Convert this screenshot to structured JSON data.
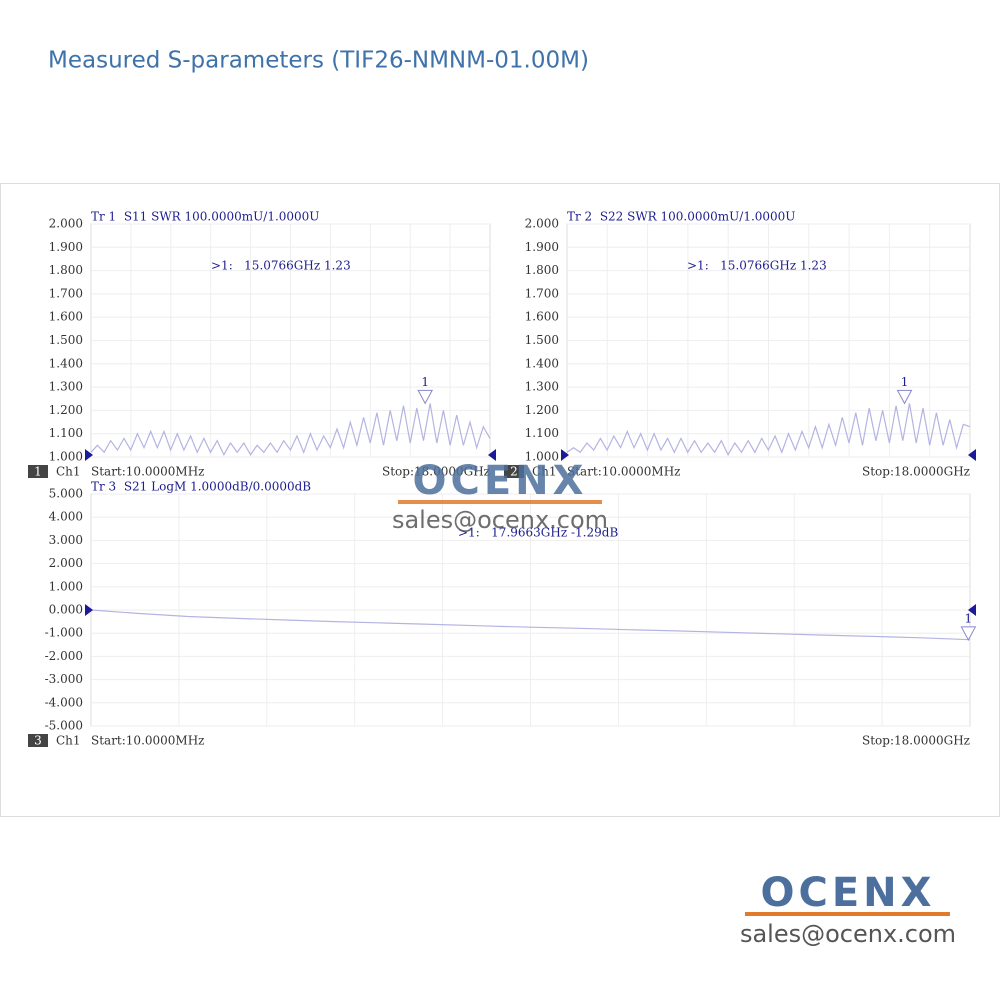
{
  "header": {
    "title": "Measured S-parameters (TIF26-NMNM-01.00M)"
  },
  "watermark": {
    "logo": "OCENX",
    "email": "sales@ocenx.com"
  },
  "footer": {
    "logo": "OCENX",
    "email": "sales@ocenx.com"
  },
  "chart_data": [
    {
      "type": "line",
      "title": "Tr 1  S11 SWR 100.0000mU/1.0000U",
      "channel": "1",
      "channel_label": "Ch1",
      "start_label": "Start:10.0000MHz",
      "stop_label": "Stop:18.0000GHz",
      "color": "#b4b4e2",
      "xlim": [
        0.01,
        18
      ],
      "ylim": [
        1,
        2
      ],
      "yticks": [
        {
          "value": 1,
          "label": "1.000"
        },
        {
          "value": 1.1,
          "label": "1.100"
        },
        {
          "value": 1.2,
          "label": "1.200"
        },
        {
          "value": 1.3,
          "label": "1.300"
        },
        {
          "value": 1.4,
          "label": "1.400"
        },
        {
          "value": 1.5,
          "label": "1.500"
        },
        {
          "value": 1.6,
          "label": "1.600"
        },
        {
          "value": 1.7,
          "label": "1.700"
        },
        {
          "value": 1.8,
          "label": "1.800"
        },
        {
          "value": 1.9,
          "label": "1.900"
        },
        {
          "value": 2,
          "label": "2.000"
        }
      ],
      "x": [
        0.01,
        0.3,
        0.6,
        0.9,
        1.2,
        1.5,
        1.8,
        2.1,
        2.4,
        2.7,
        3,
        3.3,
        3.6,
        3.9,
        4.2,
        4.5,
        4.8,
        5.1,
        5.4,
        5.7,
        6,
        6.3,
        6.6,
        6.9,
        7.2,
        7.5,
        7.8,
        8.1,
        8.4,
        8.7,
        9,
        9.3,
        9.6,
        9.9,
        10.2,
        10.5,
        10.8,
        11.1,
        11.4,
        11.7,
        12,
        12.3,
        12.6,
        12.9,
        13.2,
        13.5,
        13.8,
        14.1,
        14.4,
        14.7,
        15,
        15.3,
        15.6,
        15.9,
        16.2,
        16.5,
        16.8,
        17.1,
        17.4,
        17.7,
        18
      ],
      "values": [
        1.02,
        1.05,
        1.02,
        1.07,
        1.03,
        1.08,
        1.03,
        1.1,
        1.04,
        1.11,
        1.04,
        1.11,
        1.03,
        1.1,
        1.03,
        1.09,
        1.02,
        1.08,
        1.02,
        1.07,
        1.01,
        1.06,
        1.02,
        1.06,
        1.01,
        1.05,
        1.02,
        1.06,
        1.02,
        1.07,
        1.03,
        1.09,
        1.02,
        1.1,
        1.03,
        1.09,
        1.04,
        1.12,
        1.04,
        1.15,
        1.05,
        1.17,
        1.06,
        1.19,
        1.05,
        1.2,
        1.07,
        1.22,
        1.06,
        1.21,
        1.07,
        1.23,
        1.06,
        1.2,
        1.05,
        1.18,
        1.05,
        1.15,
        1.04,
        1.13,
        1.08
      ],
      "marker": {
        "label": "1",
        "x": 15.0766,
        "value": 1.23,
        "text": ">1:   15.0766GHz 1.23"
      }
    },
    {
      "type": "line",
      "title": "Tr 2  S22 SWR 100.0000mU/1.0000U",
      "channel": "2",
      "channel_label": "Ch1",
      "start_label": "Start:10.0000MHz",
      "stop_label": "Stop:18.0000GHz",
      "color": "#b4b4e2",
      "xlim": [
        0.01,
        18
      ],
      "ylim": [
        1,
        2
      ],
      "yticks": [
        {
          "value": 1,
          "label": "1.000"
        },
        {
          "value": 1.1,
          "label": "1.100"
        },
        {
          "value": 1.2,
          "label": "1.200"
        },
        {
          "value": 1.3,
          "label": "1.300"
        },
        {
          "value": 1.4,
          "label": "1.400"
        },
        {
          "value": 1.5,
          "label": "1.500"
        },
        {
          "value": 1.6,
          "label": "1.600"
        },
        {
          "value": 1.7,
          "label": "1.700"
        },
        {
          "value": 1.8,
          "label": "1.800"
        },
        {
          "value": 1.9,
          "label": "1.900"
        },
        {
          "value": 2,
          "label": "2.000"
        }
      ],
      "x": [
        0.01,
        0.3,
        0.6,
        0.9,
        1.2,
        1.5,
        1.8,
        2.1,
        2.4,
        2.7,
        3,
        3.3,
        3.6,
        3.9,
        4.2,
        4.5,
        4.8,
        5.1,
        5.4,
        5.7,
        6,
        6.3,
        6.6,
        6.9,
        7.2,
        7.5,
        7.8,
        8.1,
        8.4,
        8.7,
        9,
        9.3,
        9.6,
        9.9,
        10.2,
        10.5,
        10.8,
        11.1,
        11.4,
        11.7,
        12,
        12.3,
        12.6,
        12.9,
        13.2,
        13.5,
        13.8,
        14.1,
        14.4,
        14.7,
        15,
        15.3,
        15.6,
        15.9,
        16.2,
        16.5,
        16.8,
        17.1,
        17.4,
        17.7,
        18
      ],
      "values": [
        1.02,
        1.04,
        1.02,
        1.06,
        1.03,
        1.08,
        1.03,
        1.09,
        1.04,
        1.11,
        1.04,
        1.1,
        1.03,
        1.1,
        1.03,
        1.08,
        1.02,
        1.08,
        1.02,
        1.07,
        1.02,
        1.06,
        1.02,
        1.07,
        1.01,
        1.06,
        1.02,
        1.07,
        1.02,
        1.08,
        1.03,
        1.09,
        1.02,
        1.1,
        1.03,
        1.11,
        1.04,
        1.13,
        1.04,
        1.14,
        1.05,
        1.17,
        1.06,
        1.19,
        1.05,
        1.21,
        1.07,
        1.2,
        1.06,
        1.22,
        1.07,
        1.23,
        1.06,
        1.21,
        1.05,
        1.19,
        1.05,
        1.16,
        1.04,
        1.14,
        1.13
      ],
      "marker": {
        "label": "1",
        "x": 15.0766,
        "value": 1.23,
        "text": ">1:   15.0766GHz 1.23"
      }
    },
    {
      "type": "line",
      "title": "Tr 3  S21 LogM 1.0000dB/0.0000dB",
      "channel": "3",
      "channel_label": "Ch1",
      "start_label": "Start:10.0000MHz",
      "stop_label": "Stop:18.0000GHz",
      "color": "#b4b4e2",
      "xlim": [
        0.01,
        18
      ],
      "ylim": [
        -5,
        5
      ],
      "yticks": [
        {
          "value": -5,
          "label": "-5.000"
        },
        {
          "value": -4,
          "label": "-4.000"
        },
        {
          "value": -3,
          "label": "-3.000"
        },
        {
          "value": -2,
          "label": "-2.000"
        },
        {
          "value": -1,
          "label": "-1.000"
        },
        {
          "value": 0,
          "label": "0.000"
        },
        {
          "value": 1,
          "label": "1.000"
        },
        {
          "value": 2,
          "label": "2.000"
        },
        {
          "value": 3,
          "label": "3.000"
        },
        {
          "value": 4,
          "label": "4.000"
        },
        {
          "value": 5,
          "label": "5.000"
        }
      ],
      "x": [
        0.01,
        1,
        2,
        3,
        4,
        5,
        6,
        7,
        8,
        9,
        10,
        11,
        12,
        13,
        14,
        15,
        16,
        17,
        18
      ],
      "values": [
        0,
        -0.15,
        -0.28,
        -0.36,
        -0.43,
        -0.5,
        -0.56,
        -0.62,
        -0.68,
        -0.74,
        -0.79,
        -0.85,
        -0.9,
        -0.96,
        -1.02,
        -1.08,
        -1.14,
        -1.2,
        -1.28
      ],
      "marker": {
        "label": "1",
        "x": 17.9663,
        "value": -1.29,
        "text": ">1:   17.9663GHz -1.29dB"
      }
    }
  ]
}
